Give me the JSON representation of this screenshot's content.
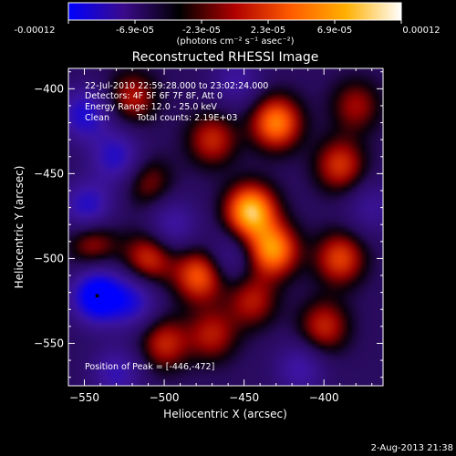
{
  "colorbar": {
    "tick_labels": [
      "-0.00012",
      "-6.9e-05",
      "-2.3e-05",
      "2.3e-05",
      "6.9e-05",
      "0.00012"
    ],
    "units": "(photons cm⁻² s⁻¹ asec⁻²)",
    "colors": [
      "#0000ff",
      "#3a0a8a",
      "#000000",
      "#b00000",
      "#ff5a00",
      "#ffb000",
      "#ffffff"
    ]
  },
  "image": {
    "title": "Reconstructed RHESSI Image",
    "annotations": [
      "22-Jul-2010 22:59:28.000 to 23:02:24.000",
      "Detectors: 4F 5F 6F 7F 8F, Att 0",
      "Energy Range: 12.0 - 25.0 keV",
      "Clean",
      "Total counts: 2.19E+03"
    ],
    "peak_text": "Position of Peak = [-446,-472]"
  },
  "chart_data": {
    "type": "heatmap",
    "title": "Reconstructed RHESSI Image",
    "xlabel": "Heliocentric X (arcsec)",
    "ylabel": "Heliocentric Y (arcsec)",
    "xlim": [
      -560,
      -363
    ],
    "ylim": [
      -575,
      -388
    ],
    "x_ticks": [
      -550,
      -500,
      -450,
      -400
    ],
    "y_ticks": [
      -400,
      -450,
      -500,
      -550
    ],
    "value_range": [
      -0.00012,
      0.00012
    ],
    "peak": {
      "x": -446,
      "y": -472
    },
    "blobs": [
      {
        "x": -446,
        "y": -472,
        "v": 1.0
      },
      {
        "x": -432,
        "y": -495,
        "v": 0.85
      },
      {
        "x": -430,
        "y": -420,
        "v": 0.8
      },
      {
        "x": -390,
        "y": -445,
        "v": 0.55
      },
      {
        "x": -390,
        "y": -500,
        "v": 0.6
      },
      {
        "x": -400,
        "y": -540,
        "v": 0.5
      },
      {
        "x": -470,
        "y": -430,
        "v": 0.5
      },
      {
        "x": -520,
        "y": -405,
        "v": 0.45
      },
      {
        "x": -510,
        "y": -500,
        "v": 0.55
      },
      {
        "x": -478,
        "y": -510,
        "v": 0.7
      },
      {
        "x": -470,
        "y": -545,
        "v": 0.45
      },
      {
        "x": -500,
        "y": -550,
        "v": 0.5
      },
      {
        "x": -545,
        "y": -490,
        "v": 0.45
      },
      {
        "x": -510,
        "y": -455,
        "v": 0.35
      },
      {
        "x": -445,
        "y": -525,
        "v": 0.45
      },
      {
        "x": -380,
        "y": -410,
        "v": 0.4
      },
      {
        "x": -530,
        "y": -440,
        "v": -0.55
      },
      {
        "x": -550,
        "y": -415,
        "v": -0.6
      },
      {
        "x": -542,
        "y": -522,
        "v": -1.0
      },
      {
        "x": -548,
        "y": -470,
        "v": -0.6
      },
      {
        "x": -495,
        "y": -480,
        "v": -0.4
      },
      {
        "x": -455,
        "y": -395,
        "v": -0.35
      },
      {
        "x": -520,
        "y": -525,
        "v": -0.55
      },
      {
        "x": -460,
        "y": -500,
        "v": -0.3
      },
      {
        "x": -415,
        "y": -565,
        "v": -0.4
      },
      {
        "x": -530,
        "y": -568,
        "v": -0.45
      },
      {
        "x": -370,
        "y": -470,
        "v": -0.3
      }
    ]
  },
  "footer": {
    "timestamp": "2-Aug-2013 21:38"
  }
}
